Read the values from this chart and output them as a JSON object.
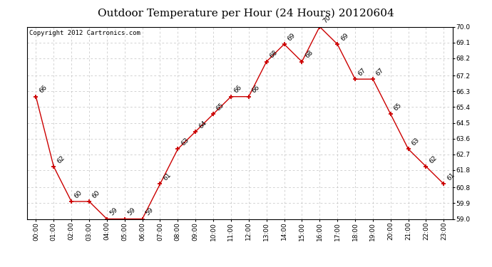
{
  "title": "Outdoor Temperature per Hour (24 Hours) 20120604",
  "copyright_text": "Copyright 2012 Cartronics.com",
  "hours": [
    "00:00",
    "01:00",
    "02:00",
    "03:00",
    "04:00",
    "05:00",
    "06:00",
    "07:00",
    "08:00",
    "09:00",
    "10:00",
    "11:00",
    "12:00",
    "13:00",
    "14:00",
    "15:00",
    "16:00",
    "17:00",
    "18:00",
    "19:00",
    "20:00",
    "21:00",
    "22:00",
    "23:00"
  ],
  "temps": [
    66,
    62,
    60,
    60,
    59,
    59,
    59,
    61,
    63,
    64,
    65,
    66,
    66,
    68,
    69,
    68,
    70,
    69,
    67,
    67,
    65,
    63,
    62,
    61
  ],
  "line_color": "#cc0000",
  "marker_color": "#cc0000",
  "bg_color": "#ffffff",
  "plot_bg_color": "#ffffff",
  "grid_color": "#c0c0c0",
  "ylim_min": 59.0,
  "ylim_max": 70.0,
  "yticks": [
    59.0,
    59.9,
    60.8,
    61.8,
    62.7,
    63.6,
    64.5,
    65.4,
    66.3,
    67.2,
    68.2,
    69.1,
    70.0
  ],
  "title_fontsize": 11,
  "annotation_fontsize": 6.5,
  "copyright_fontsize": 6.5,
  "tick_fontsize": 6.5
}
